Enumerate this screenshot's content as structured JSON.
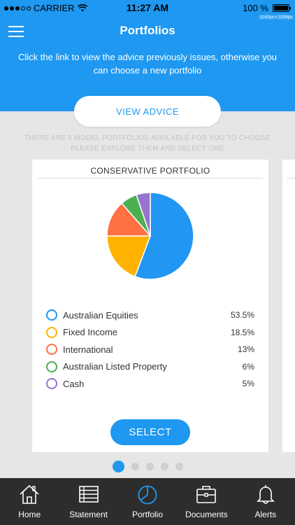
{
  "status_bar": {
    "carrier": "CARRIER",
    "time": "11:27 AM",
    "battery": "100 %",
    "dim_tag": "1242px × 2208px"
  },
  "header": {
    "title": "Portfolios",
    "subtitle": "Click the link to view the advice previously issues, otherwise you can choose a new portfolio"
  },
  "view_advice_label": "VIEW ADVICE",
  "info_text": "THERE ARE 5 MODEL PORTFOLIOS AVAILABLE FOR YOU TO CHOOSE PLEASE EXPLORE THEM AND SELECT ONE",
  "card": {
    "title": "CONSERVATIVE PORTFOLIO",
    "select_label": "SELECT"
  },
  "chart_data": {
    "type": "pie",
    "title": "CONSERVATIVE PORTFOLIO",
    "categories": [
      "Australian Equities",
      "Fixed Income",
      "International",
      "Australian Listed Property",
      "Cash"
    ],
    "values": [
      53.5,
      18.5,
      13,
      6,
      5
    ],
    "colors": [
      "#2196f3",
      "#ffb300",
      "#ff7043",
      "#4caf50",
      "#9575cd"
    ]
  },
  "legend": [
    {
      "label": "Australian Equities",
      "value": "53.5%",
      "color": "#2196f3"
    },
    {
      "label": "Fixed Income",
      "value": "18.5%",
      "color": "#ffb300"
    },
    {
      "label": "International",
      "value": "13%",
      "color": "#ff7043"
    },
    {
      "label": "Australian Listed Property",
      "value": "6%",
      "color": "#4caf50"
    },
    {
      "label": "Cash",
      "value": "5%",
      "color": "#9575cd"
    }
  ],
  "pager": {
    "count": 5,
    "active_index": 0
  },
  "tabs": [
    {
      "label": "Home",
      "icon": "home-icon"
    },
    {
      "label": "Statement",
      "icon": "statement-icon"
    },
    {
      "label": "Portfolio",
      "icon": "portfolio-icon",
      "active": true
    },
    {
      "label": "Documents",
      "icon": "documents-icon"
    },
    {
      "label": "Alerts",
      "icon": "bell-icon"
    }
  ],
  "colors": {
    "accent": "#1e98f0",
    "tabbar": "#2d2d2d",
    "background": "#e6e6e6"
  }
}
